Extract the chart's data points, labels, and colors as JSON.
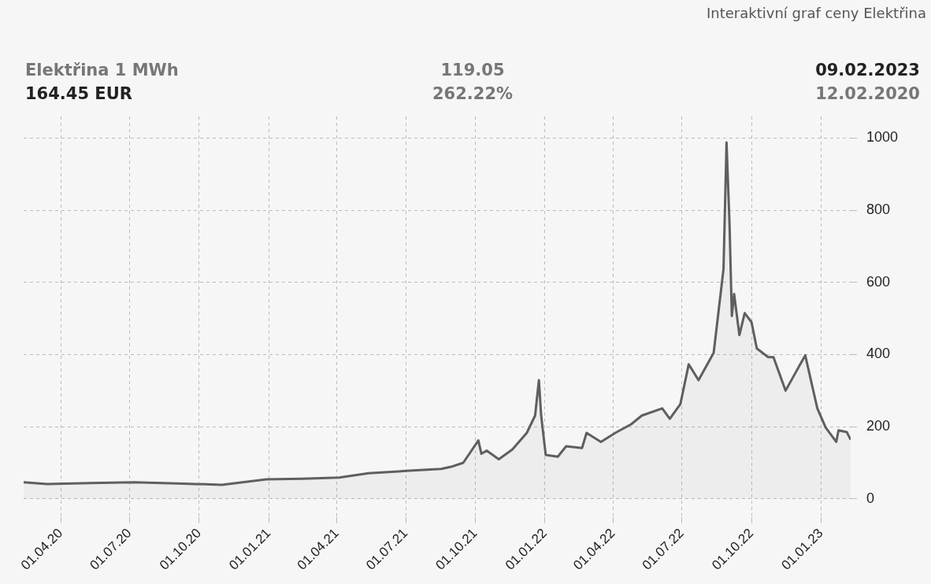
{
  "chart_data": {
    "type": "area",
    "title": "Interaktivní graf ceny Elektřina",
    "annotations": [
      "Elektřina 1 MWh",
      "119.05",
      "09.02.2023",
      "164.45 EUR",
      "262.22%",
      "12.02.2020"
    ],
    "x": [
      "2020-02-12",
      "2020-03-14",
      "2020-05-10",
      "2020-07-07",
      "2020-09-01",
      "2020-10-31",
      "2020-12-29",
      "2021-02-15",
      "2021-04-04",
      "2021-05-13",
      "2021-07-06",
      "2021-08-17",
      "2021-08-30",
      "2021-09-15",
      "2021-10-05",
      "2021-10-09",
      "2021-10-16",
      "2021-11-01",
      "2021-11-19",
      "2021-12-08",
      "2021-12-19",
      "2021-12-24",
      "2021-12-27",
      "2022-01-02",
      "2022-01-18",
      "2022-01-29",
      "2022-02-19",
      "2022-02-25",
      "2022-03-16",
      "2022-04-04",
      "2022-04-25",
      "2022-05-09",
      "2022-06-05",
      "2022-06-15",
      "2022-06-29",
      "2022-07-10",
      "2022-07-23",
      "2022-08-12",
      "2022-08-25",
      "2022-08-29",
      "2022-09-02",
      "2022-09-05",
      "2022-09-08",
      "2022-09-15",
      "2022-09-22",
      "2022-10-01",
      "2022-10-08",
      "2022-10-23",
      "2022-10-30",
      "2022-11-15",
      "2022-11-28",
      "2022-12-11",
      "2022-12-27",
      "2023-01-07",
      "2023-01-21",
      "2023-01-24",
      "2023-02-04",
      "2023-02-09"
    ],
    "series": [
      {
        "color": "#5f5f5f",
        "values": [
          46,
          41,
          44,
          46,
          43,
          39,
          54,
          56,
          59,
          71,
          78,
          83,
          89,
          100,
          162,
          125,
          134,
          110,
          137,
          183,
          231,
          329,
          231,
          122,
          117,
          146,
          141,
          183,
          158,
          183,
          207,
          231,
          251,
          222,
          263,
          373,
          329,
          405,
          637,
          988,
          759,
          507,
          568,
          454,
          515,
          490,
          417,
          393,
          393,
          300,
          349,
          398,
          251,
          198,
          158,
          190,
          185,
          164
        ]
      }
    ],
    "xlim": [
      "2020-02-12",
      "2023-02-09"
    ],
    "xticks": [
      {
        "value": "2020-04-01",
        "label": "01.04.20"
      },
      {
        "value": "2020-07-01",
        "label": "01.07.20"
      },
      {
        "value": "2020-10-01",
        "label": "01.10.20"
      },
      {
        "value": "2021-01-01",
        "label": "01.01.21"
      },
      {
        "value": "2021-04-01",
        "label": "01.04.21"
      },
      {
        "value": "2021-07-01",
        "label": "01.07.21"
      },
      {
        "value": "2021-10-01",
        "label": "01.10.21"
      },
      {
        "value": "2022-01-01",
        "label": "01.01.22"
      },
      {
        "value": "2022-04-01",
        "label": "01.04.22"
      },
      {
        "value": "2022-07-01",
        "label": "01.07.22"
      },
      {
        "value": "2022-10-01",
        "label": "01.10.22"
      },
      {
        "value": "2023-01-01",
        "label": "01.01.23"
      }
    ],
    "ylim": [
      -50,
      1060
    ],
    "yticks": [
      0,
      200,
      400,
      600,
      800,
      1000
    ],
    "grid": true,
    "legend": false,
    "marker": "none",
    "line_style": "solid"
  }
}
